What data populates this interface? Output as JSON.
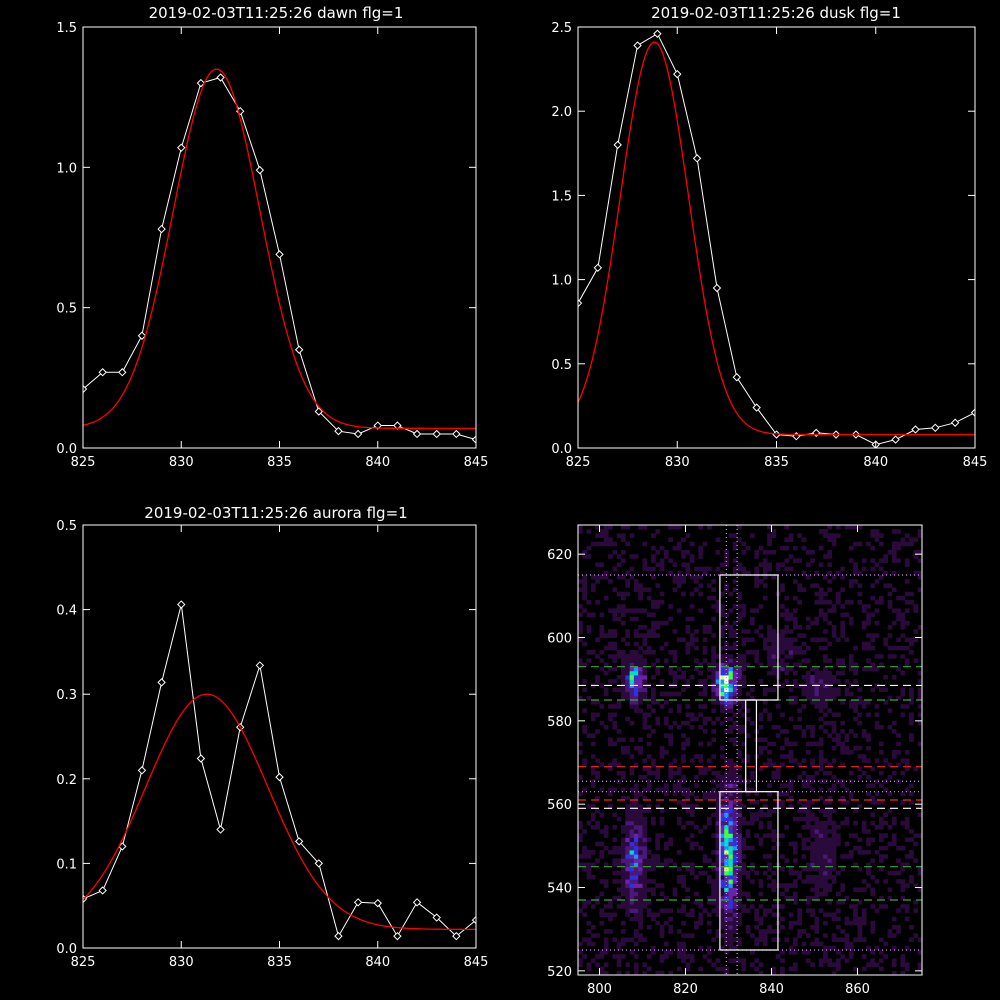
{
  "chart_data": [
    {
      "type": "line",
      "title": "2019-02-03T11:25:26 dawn flg=1",
      "xlim": [
        825,
        845
      ],
      "ylim": [
        0,
        1.5
      ],
      "xticks": [
        825,
        830,
        835,
        840,
        845
      ],
      "yticks": [
        0.0,
        0.5,
        1.0,
        1.5
      ],
      "ytick_labels": [
        "0.0",
        "0.5",
        "1.0",
        "1.5"
      ],
      "grid": false,
      "series": [
        {
          "kind": "data",
          "color": "#ffffff",
          "marker": "diamond",
          "x": [
            825,
            826,
            827,
            828,
            829,
            830,
            831,
            832,
            833,
            834,
            835,
            836,
            837,
            838,
            839,
            840,
            841,
            842,
            843,
            844,
            845
          ],
          "y": [
            0.21,
            0.27,
            0.27,
            0.4,
            0.78,
            1.07,
            1.3,
            1.32,
            1.2,
            0.99,
            0.69,
            0.35,
            0.13,
            0.06,
            0.05,
            0.08,
            0.08,
            0.05,
            0.05,
            0.05,
            0.03
          ]
        },
        {
          "kind": "fit",
          "color": "#ff0000",
          "gaussian": {
            "amplitude": 1.28,
            "center": 831.8,
            "sigma": 2.2,
            "offset": 0.07
          }
        }
      ]
    },
    {
      "type": "line",
      "title": "2019-02-03T11:25:26 dusk flg=1",
      "xlim": [
        825,
        845
      ],
      "ylim": [
        0,
        2.5
      ],
      "xticks": [
        825,
        830,
        835,
        840,
        845
      ],
      "yticks": [
        0.0,
        0.5,
        1.0,
        1.5,
        2.0,
        2.5
      ],
      "ytick_labels": [
        "0.0",
        "0.5",
        "1.0",
        "1.5",
        "2.0",
        "2.5"
      ],
      "grid": false,
      "series": [
        {
          "kind": "data",
          "color": "#ffffff",
          "marker": "diamond",
          "x": [
            825,
            826,
            827,
            828,
            829,
            830,
            831,
            832,
            833,
            834,
            835,
            836,
            837,
            838,
            839,
            840,
            841,
            842,
            843,
            844,
            845
          ],
          "y": [
            0.86,
            1.07,
            1.8,
            2.39,
            2.46,
            2.22,
            1.72,
            0.95,
            0.42,
            0.24,
            0.08,
            0.07,
            0.09,
            0.08,
            0.08,
            0.02,
            0.05,
            0.11,
            0.12,
            0.15,
            0.21
          ]
        },
        {
          "kind": "fit",
          "color": "#ff0000",
          "gaussian": {
            "amplitude": 2.33,
            "center": 828.85,
            "sigma": 1.72,
            "offset": 0.08
          }
        }
      ]
    },
    {
      "type": "line",
      "title": "2019-02-03T11:25:26 aurora flg=1",
      "xlim": [
        825,
        845
      ],
      "ylim": [
        0,
        0.5
      ],
      "xticks": [
        825,
        830,
        835,
        840,
        845
      ],
      "yticks": [
        0.0,
        0.1,
        0.2,
        0.3,
        0.4,
        0.5
      ],
      "ytick_labels": [
        "0.0",
        "0.1",
        "0.2",
        "0.3",
        "0.4",
        "0.5"
      ],
      "grid": false,
      "series": [
        {
          "kind": "data",
          "color": "#ffffff",
          "marker": "diamond",
          "x": [
            825,
            826,
            827,
            828,
            829,
            830,
            831,
            832,
            833,
            834,
            835,
            836,
            837,
            838,
            839,
            840,
            841,
            842,
            843,
            844,
            845
          ],
          "y": [
            0.058,
            0.068,
            0.12,
            0.21,
            0.314,
            0.406,
            0.224,
            0.14,
            0.261,
            0.334,
            0.202,
            0.126,
            0.1,
            0.014,
            0.054,
            0.053,
            0.014,
            0.054,
            0.036,
            0.014,
            0.033
          ]
        },
        {
          "kind": "fit",
          "color": "#ff0000",
          "gaussian": {
            "amplitude": 0.278,
            "center": 831.3,
            "sigma": 3.1,
            "offset": 0.022
          }
        }
      ]
    },
    {
      "type": "heatmap",
      "title": "",
      "xlim": [
        795,
        875
      ],
      "ylim": [
        519,
        627
      ],
      "xticks": [
        800,
        820,
        840,
        860
      ],
      "yticks": [
        520,
        540,
        560,
        580,
        600,
        620
      ],
      "colormap": [
        "#000000",
        "#2a0a3a",
        "#4a1878",
        "#6a22a8",
        "#3030e0",
        "#1e90ff",
        "#00e0c0",
        "#40ff40",
        "#e0ff60",
        "#ffffff"
      ],
      "blobs": [
        {
          "x": 808,
          "y": 590,
          "amplitude": 0.65,
          "sx": 1.5,
          "sy": 3.0
        },
        {
          "x": 829.5,
          "y": 589,
          "amplitude": 0.95,
          "sx": 1.6,
          "sy": 3.0
        },
        {
          "x": 851,
          "y": 588,
          "amplitude": 0.22,
          "sx": 2.2,
          "sy": 2.8
        },
        {
          "x": 842,
          "y": 596,
          "amplitude": 0.1,
          "sx": 3.0,
          "sy": 4.0
        },
        {
          "x": 808,
          "y": 546,
          "amplitude": 0.45,
          "sx": 1.6,
          "sy": 7.0
        },
        {
          "x": 830,
          "y": 548,
          "amplitude": 0.7,
          "sx": 1.5,
          "sy": 10.0
        },
        {
          "x": 852,
          "y": 548,
          "amplitude": 0.12,
          "sx": 2.5,
          "sy": 8.0
        }
      ],
      "hlines": [
        {
          "y": 615,
          "color": "#d98cff",
          "style": "dotted"
        },
        {
          "y": 593,
          "color": "#3aa63a",
          "style": "dashed"
        },
        {
          "y": 588.5,
          "color": "#ffffff",
          "style": "dashed"
        },
        {
          "y": 585,
          "color": "#3aa63a",
          "style": "dashed"
        },
        {
          "y": 569,
          "color": "#ff2020",
          "style": "dashed"
        },
        {
          "y": 565.5,
          "color": "#d98cff",
          "style": "dotted"
        },
        {
          "y": 563,
          "color": "#d98cff",
          "style": "dotted"
        },
        {
          "y": 561,
          "color": "#ff2020",
          "style": "dashed"
        },
        {
          "y": 559,
          "color": "#ffffff",
          "style": "dashed"
        },
        {
          "y": 545,
          "color": "#3aa63a",
          "style": "dashed"
        },
        {
          "y": 537,
          "color": "#3aa63a",
          "style": "dashed"
        },
        {
          "y": 525,
          "color": "#d98cff",
          "style": "dotted"
        }
      ],
      "vlines": [
        {
          "x": 829.5,
          "color": "#d98cff",
          "style": "dotted"
        },
        {
          "x": 832,
          "color": "#d98cff",
          "style": "dotted"
        }
      ],
      "boxes": [
        {
          "x0": 828,
          "x1": 841.5,
          "y0": 585,
          "y1": 615,
          "color": "#ffffff"
        },
        {
          "x0": 834,
          "x1": 836.5,
          "y0": 563,
          "y1": 585,
          "color": "#ffffff"
        },
        {
          "x0": 828,
          "x1": 841.5,
          "y0": 525,
          "y1": 563,
          "color": "#ffffff"
        }
      ]
    }
  ]
}
